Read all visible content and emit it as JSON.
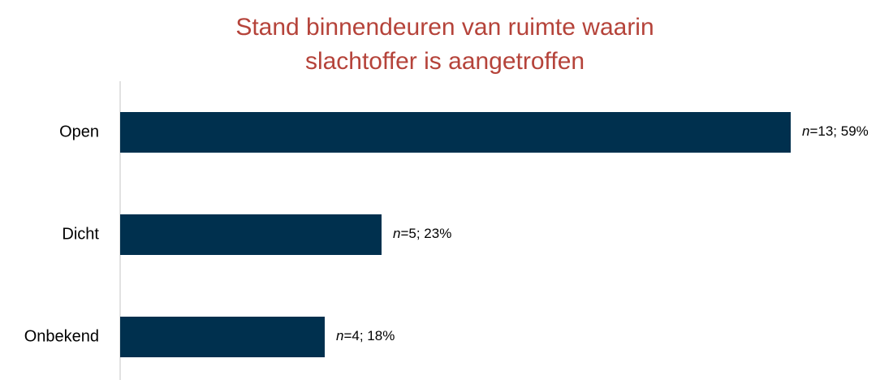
{
  "chart_data": {
    "type": "bar",
    "orientation": "horizontal",
    "title": [
      "Stand binnendeuren van ruimte waarin",
      "slachtoffer is aangetroffen"
    ],
    "categories": [
      "Open",
      "Dicht",
      "Onbekend"
    ],
    "values": [
      59,
      23,
      18
    ],
    "value_labels": [
      "n=13; 59%",
      "n=5; 23%",
      "n=4; 18%"
    ],
    "color": "#00304e"
  }
}
